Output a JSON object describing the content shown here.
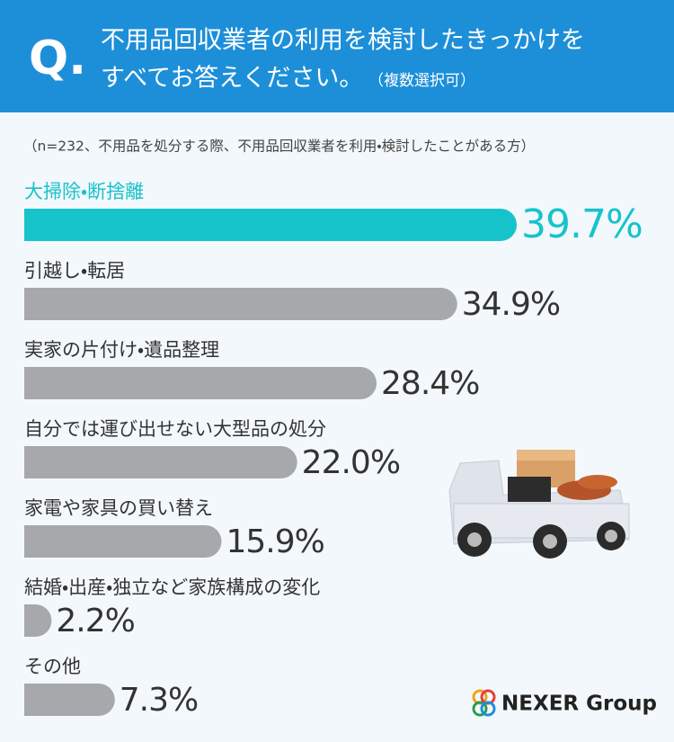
{
  "chart_data": {
    "type": "bar",
    "title_mark": "Q.",
    "title": "不用品回収業者の利用を検討したきっかけを",
    "title_line2": "すべてお答えください。",
    "title_note": "（複数選択可）",
    "subtitle": "（n=232、不用品を処分する際、不用品回収業者を利用・検討したことがある方）",
    "categories": [
      "大掃除・断捨離",
      "引越し・転居",
      "実家の片付け・遺品整理",
      "自分では運び出せない大型品の処分",
      "家電や家具の買い替え",
      "結婚・出産・独立など家族構成の変化",
      "その他"
    ],
    "values": [
      39.7,
      34.9,
      28.4,
      22.0,
      15.9,
      2.2,
      7.3
    ],
    "value_labels": [
      "39.7%",
      "34.9%",
      "28.4%",
      "22.0%",
      "15.9%",
      "2.2%",
      "7.3%"
    ],
    "colors": [
      "#17c3cb",
      "#a6a8ab",
      "#a6a8ab",
      "#a6a8ab",
      "#a6a8ab",
      "#a6a8ab",
      "#a6a8ab"
    ],
    "label_colors": [
      "#17c3cb",
      "#333333",
      "#333333",
      "#333333",
      "#333333",
      "#333333",
      "#333333"
    ],
    "logo": "NEXER Group"
  }
}
